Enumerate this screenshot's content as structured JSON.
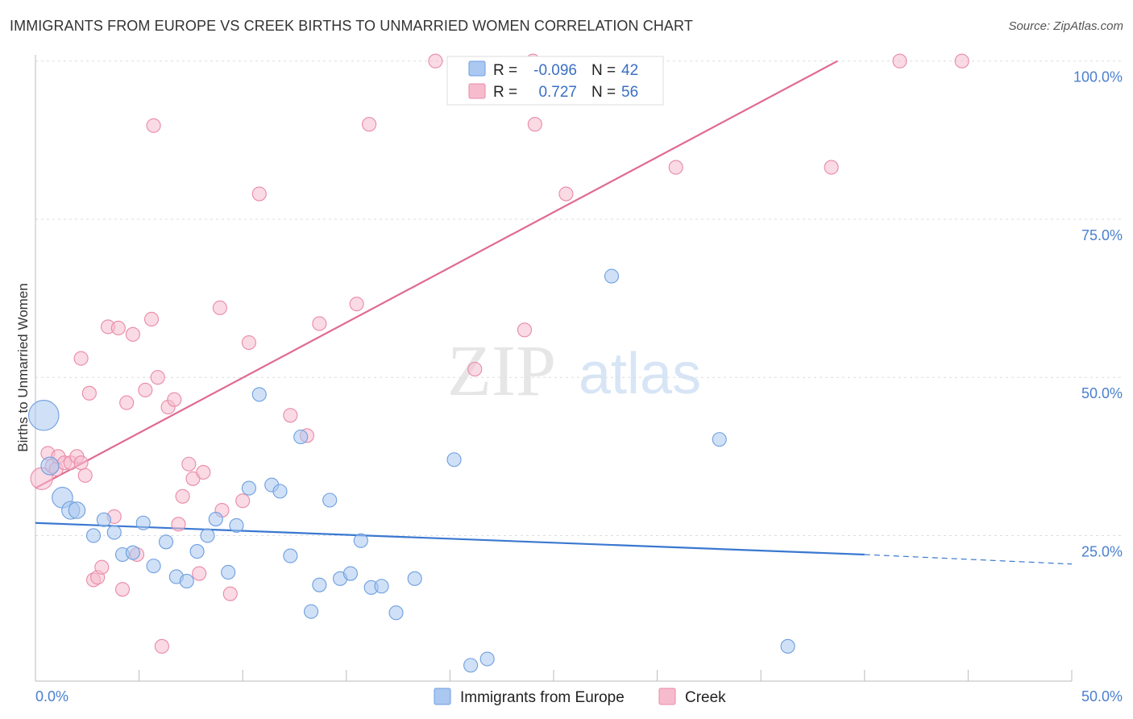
{
  "header": {
    "title": "IMMIGRANTS FROM EUROPE VS CREEK BIRTHS TO UNMARRIED WOMEN CORRELATION CHART",
    "source": "Source: ZipAtlas.com"
  },
  "watermark": {
    "zip": "ZIP",
    "atlas": "atlas"
  },
  "chart_data": {
    "type": "scatter",
    "title": "IMMIGRANTS FROM EUROPE VS CREEK BIRTHS TO UNMARRIED WOMEN CORRELATION CHART",
    "xlabel": "",
    "ylabel": "Births to Unmarried Women",
    "xlim": [
      0,
      50
    ],
    "ylim": [
      2,
      102
    ],
    "x_tick_labels": [
      {
        "value": 0,
        "label": "0.0%"
      },
      {
        "value": 50,
        "label": "50.0%"
      }
    ],
    "y_tick_labels": [
      {
        "value": 100,
        "label": "100.0%"
      },
      {
        "value": 75,
        "label": "75.0%"
      },
      {
        "value": 50,
        "label": "50.0%"
      },
      {
        "value": 25,
        "label": "25.0%"
      }
    ],
    "legend": [
      {
        "name": "Immigrants from Europe",
        "r_label": "R =",
        "r_value": "-0.096",
        "n_label": "N =",
        "n_value": "42"
      },
      {
        "name": "Creek",
        "r_label": "R =",
        "r_value": "0.727",
        "n_label": "N =",
        "n_value": "56"
      }
    ],
    "colors": {
      "europe_fill": "#aac8f0",
      "europe_stroke": "#6d9ee0",
      "europe_line": "#3a78d0",
      "creek_fill": "#f6bccd",
      "creek_stroke": "#e98aa6",
      "creek_line": "#e06a93",
      "grid": "#dddddd",
      "tick": "#4a7fd0"
    },
    "series": [
      {
        "name": "Immigrants from Europe",
        "trend": {
          "x0": 0,
          "y0": 27.0,
          "x1": 40,
          "y1": 22.0,
          "dashed_to_x": 50,
          "dashed_to_y": 20.5
        },
        "points": [
          [
            0.4,
            44,
            2.2
          ],
          [
            0.7,
            36,
            1.3
          ],
          [
            1.3,
            31,
            1.5
          ],
          [
            1.7,
            29,
            1.3
          ],
          [
            2.8,
            25,
            1
          ],
          [
            3.3,
            27.5,
            1
          ],
          [
            3.8,
            25.5,
            1
          ],
          [
            4.2,
            22,
            1
          ],
          [
            4.7,
            22.3,
            1
          ],
          [
            5.2,
            27,
            1
          ],
          [
            5.7,
            20.2,
            1
          ],
          [
            6.3,
            24,
            1
          ],
          [
            6.8,
            18.5,
            1
          ],
          [
            7.3,
            17.8,
            1
          ],
          [
            7.8,
            22.5,
            1
          ],
          [
            8.3,
            25,
            1
          ],
          [
            8.7,
            27.6,
            1
          ],
          [
            9.3,
            19.2,
            1
          ],
          [
            9.7,
            26.6,
            1
          ],
          [
            10.3,
            32.5,
            1
          ],
          [
            10.8,
            47.3,
            1
          ],
          [
            11.4,
            33,
            1
          ],
          [
            11.8,
            32,
            1
          ],
          [
            12.3,
            21.8,
            1
          ],
          [
            12.8,
            40.6,
            1
          ],
          [
            13.3,
            13,
            1
          ],
          [
            13.7,
            17.2,
            1
          ],
          [
            14.2,
            30.6,
            1
          ],
          [
            14.7,
            18.2,
            1
          ],
          [
            15.2,
            19,
            1
          ],
          [
            15.7,
            24.2,
            1
          ],
          [
            16.2,
            16.8,
            1
          ],
          [
            16.7,
            17,
            1
          ],
          [
            17.4,
            12.8,
            1
          ],
          [
            18.3,
            18.2,
            1
          ],
          [
            20.2,
            37,
            1
          ],
          [
            21.0,
            4.5,
            1
          ],
          [
            21.8,
            5.5,
            1
          ],
          [
            27.8,
            66,
            1
          ],
          [
            33.0,
            40.2,
            1
          ],
          [
            36.3,
            7.5,
            1
          ],
          [
            2.0,
            29,
            1.2
          ]
        ]
      },
      {
        "name": "Creek",
        "trend": {
          "x0": 0,
          "y0": 32.5,
          "x1": 38.7,
          "y1": 100
        },
        "points": [
          [
            0.3,
            34,
            1.6
          ],
          [
            0.6,
            38,
            1
          ],
          [
            0.8,
            36,
            1
          ],
          [
            1.0,
            35.5,
            1
          ],
          [
            1.1,
            37.5,
            1
          ],
          [
            1.4,
            36.5,
            1
          ],
          [
            1.7,
            36.5,
            1
          ],
          [
            2.0,
            37.5,
            1
          ],
          [
            2.2,
            36.5,
            1
          ],
          [
            2.4,
            34.5,
            1
          ],
          [
            2.2,
            53,
            1
          ],
          [
            2.6,
            47.5,
            1
          ],
          [
            2.8,
            18,
            1
          ],
          [
            3.0,
            18.4,
            1
          ],
          [
            3.2,
            20,
            1
          ],
          [
            3.5,
            58,
            1
          ],
          [
            3.8,
            28,
            1
          ],
          [
            4.0,
            57.8,
            1
          ],
          [
            4.2,
            16.5,
            1
          ],
          [
            4.4,
            46,
            1
          ],
          [
            4.7,
            56.8,
            1
          ],
          [
            4.9,
            22,
            1
          ],
          [
            5.3,
            48,
            1
          ],
          [
            5.6,
            59.2,
            1
          ],
          [
            5.7,
            89.8,
            1
          ],
          [
            5.9,
            50,
            1
          ],
          [
            6.1,
            7.5,
            1
          ],
          [
            6.4,
            45.3,
            1
          ],
          [
            6.7,
            46.5,
            1
          ],
          [
            6.9,
            26.8,
            1
          ],
          [
            7.1,
            31.2,
            1
          ],
          [
            7.4,
            36.3,
            1
          ],
          [
            7.6,
            34,
            1
          ],
          [
            7.9,
            19,
            1
          ],
          [
            8.1,
            35,
            1
          ],
          [
            8.9,
            61,
            1
          ],
          [
            9.4,
            15.8,
            1
          ],
          [
            10.0,
            30.5,
            1
          ],
          [
            10.3,
            55.5,
            1
          ],
          [
            10.8,
            79,
            1
          ],
          [
            12.3,
            44,
            1
          ],
          [
            13.1,
            40.8,
            1
          ],
          [
            13.7,
            58.5,
            1
          ],
          [
            15.5,
            61.6,
            1
          ],
          [
            16.1,
            90,
            1
          ],
          [
            19.3,
            100,
            1
          ],
          [
            21.2,
            51.3,
            1
          ],
          [
            23.6,
            57.5,
            1
          ],
          [
            24.0,
            100,
            1
          ],
          [
            24.1,
            90,
            1
          ],
          [
            25.6,
            79,
            1
          ],
          [
            30.9,
            83.2,
            1
          ],
          [
            38.4,
            83.2,
            1
          ],
          [
            41.7,
            100,
            1
          ],
          [
            44.7,
            100,
            1
          ],
          [
            9.0,
            29,
            1
          ]
        ]
      }
    ]
  }
}
